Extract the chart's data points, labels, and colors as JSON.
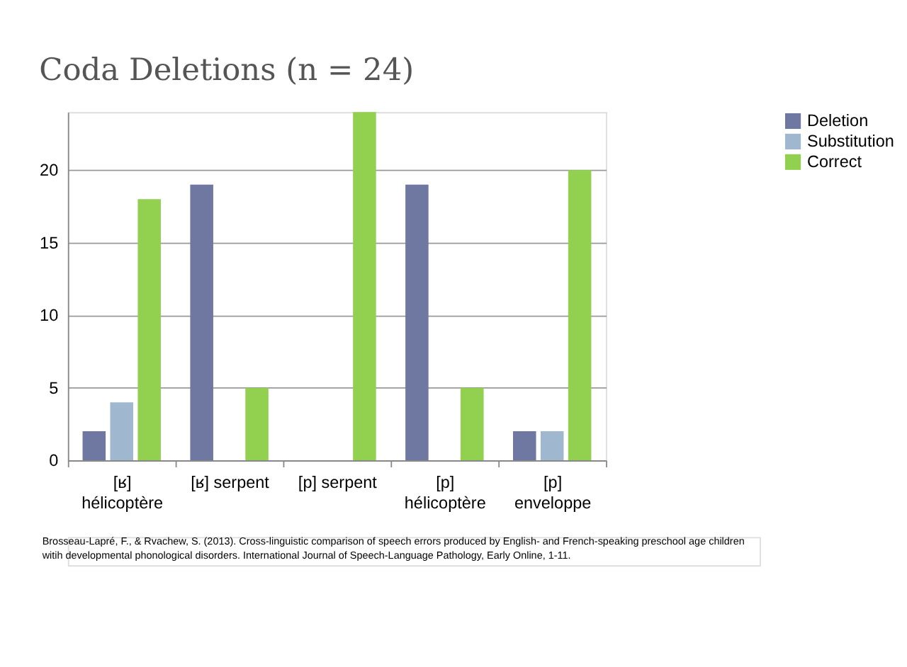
{
  "chart_data": {
    "type": "bar",
    "title": "Coda Deletions (n = 24)",
    "categories": [
      "[ʁ] hélicoptère",
      "[ʁ] serpent",
      "[p] serpent",
      "[p] hélicoptère",
      "[p] enveloppe"
    ],
    "series": [
      {
        "name": "Deletion",
        "color": "#6e78a0",
        "values": [
          2,
          19,
          0,
          19,
          2
        ]
      },
      {
        "name": "Substitution",
        "color": "#9fb8d0",
        "values": [
          4,
          0,
          0,
          0,
          2
        ]
      },
      {
        "name": "Correct",
        "color": "#92d050",
        "values": [
          18,
          5,
          24,
          5,
          20
        ]
      }
    ],
    "ylim": [
      0,
      24
    ],
    "yticks": [
      0,
      5,
      10,
      15,
      20
    ],
    "grid": "y",
    "legend": "right",
    "annotations": [
      "Brosseau-Lapré, F., & Rvachew, S. (2013). Cross-linguistic comparison of speech errors produced by English- and French-speaking preschool age children witih developmental phonological disorders. International Journal of Speech-Language Pathology, Early Online, 1-11."
    ]
  }
}
